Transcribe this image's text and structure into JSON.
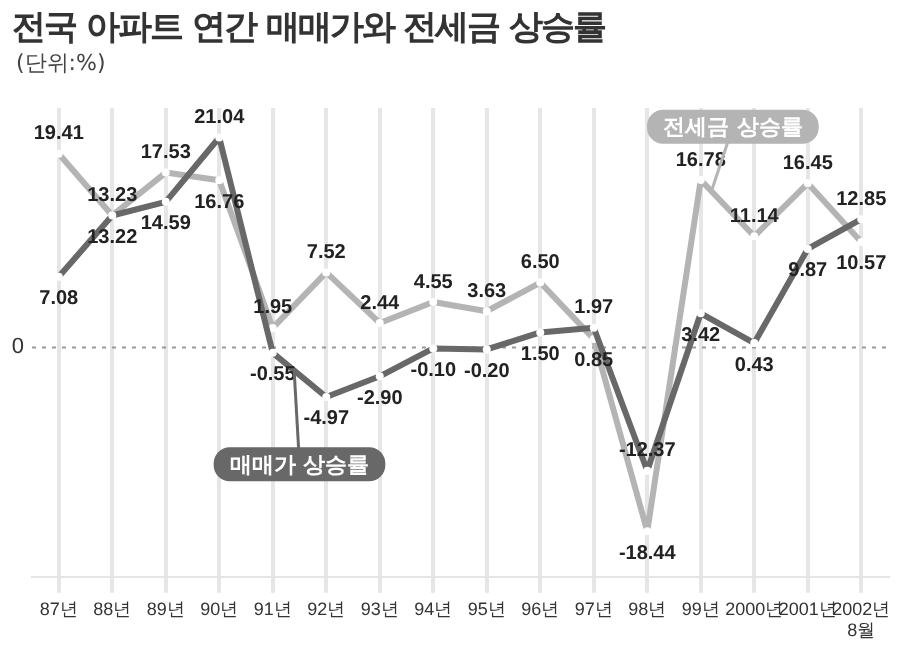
{
  "chart_data": {
    "type": "line",
    "title": "전국 아파트 연간 매매가와 전세금 상승률",
    "subtitle": "(단위:%)",
    "categories": [
      "87년",
      "88년",
      "89년",
      "90년",
      "91년",
      "92년",
      "93년",
      "94년",
      "95년",
      "96년",
      "97년",
      "98년",
      "99년",
      "2000년",
      "2001년",
      "2002년\n8월"
    ],
    "series": [
      {
        "name": "매매가 상승률",
        "color": "#686868",
        "values": [
          7.08,
          13.22,
          14.59,
          21.04,
          -0.55,
          -4.97,
          -2.9,
          -0.1,
          -0.2,
          1.5,
          1.97,
          -12.37,
          3.42,
          0.43,
          9.87,
          12.85
        ],
        "value_labels": [
          "7.08",
          "13.22",
          "14.59",
          "21.04",
          "-0.55",
          "-4.97",
          "-2.90",
          "-0.10",
          "-0.20",
          "1.50",
          "1.97",
          "-12.37",
          "3.42",
          "0.43",
          "9.87",
          "12.85"
        ]
      },
      {
        "name": "전세금 상승률",
        "color": "#b4b4b4",
        "values": [
          19.41,
          13.23,
          17.53,
          16.76,
          1.95,
          7.52,
          2.44,
          4.55,
          3.63,
          6.5,
          0.85,
          -18.44,
          16.78,
          11.14,
          16.45,
          10.57
        ],
        "value_labels": [
          "19.41",
          "13.23",
          "17.53",
          "16.76",
          "1.95",
          "7.52",
          "2.44",
          "4.55",
          "3.63",
          "6.50",
          "0.85",
          "-18.44",
          "16.78",
          "11.14",
          "16.45",
          "10.57"
        ]
      }
    ],
    "ylim": [
      -23,
      24
    ],
    "ref_lines": [
      {
        "axis": "y",
        "value": 0,
        "label": "0",
        "line_style": "dotted",
        "color": "#999999"
      }
    ],
    "grid": "x",
    "legend": false,
    "marker": "circle",
    "line_style": "solid"
  }
}
